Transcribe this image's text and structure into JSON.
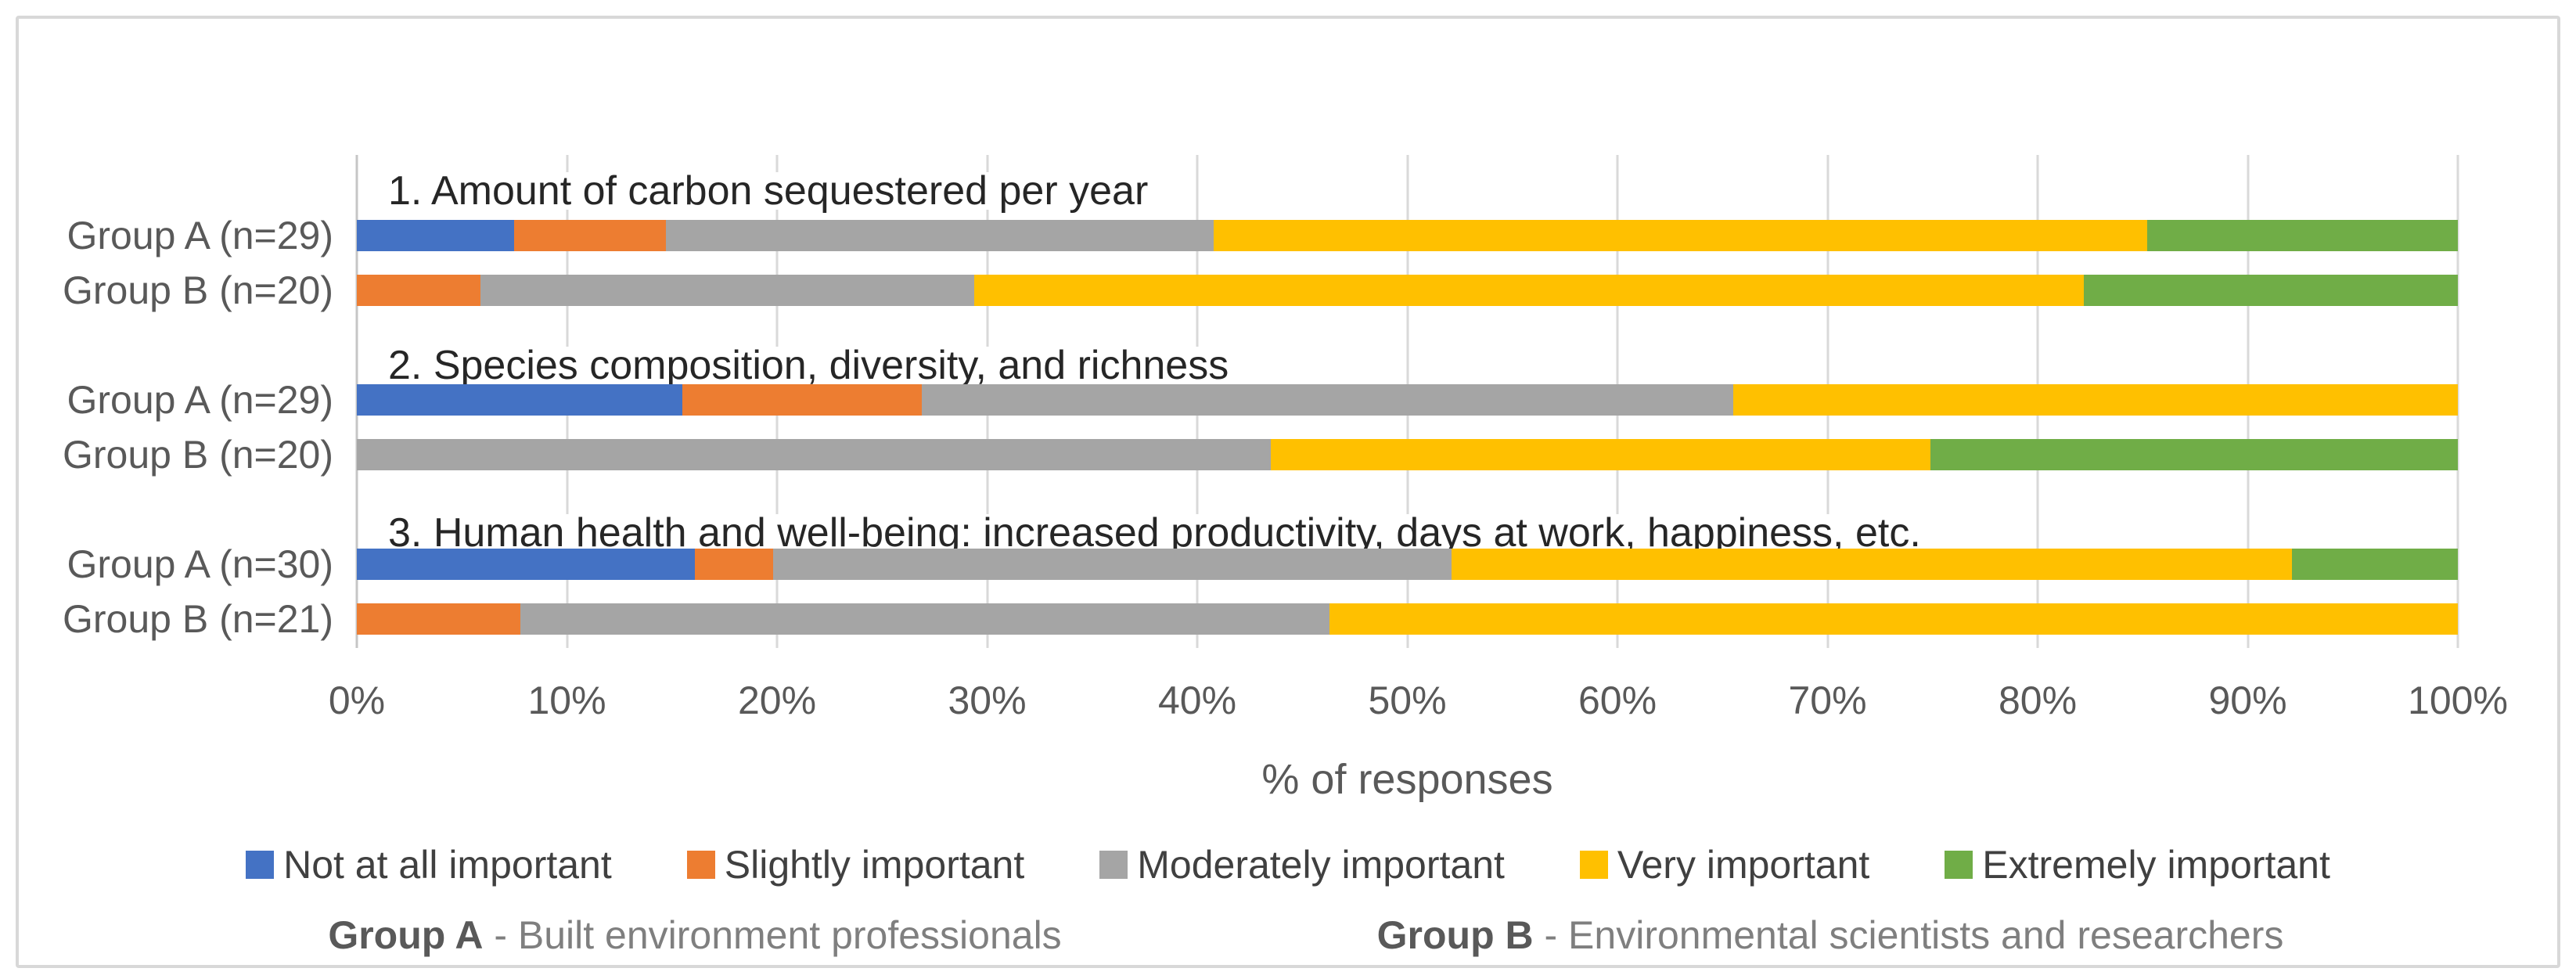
{
  "chart_data": {
    "type": "bar",
    "orientation": "horizontal",
    "stacked": true,
    "grid": true,
    "xlabel": "% of responses",
    "xlim": [
      0,
      100
    ],
    "x_ticks": [
      "0%",
      "10%",
      "20%",
      "30%",
      "40%",
      "50%",
      "60%",
      "70%",
      "80%",
      "90%",
      "100%"
    ],
    "legend_position": "bottom",
    "series": [
      {
        "name": "Not at all important",
        "color": "#4472C4"
      },
      {
        "name": "Slightly important",
        "color": "#ED7D31"
      },
      {
        "name": "Moderately important",
        "color": "#A5A5A5"
      },
      {
        "name": "Very important",
        "color": "#FFC000"
      },
      {
        "name": "Extremely important",
        "color": "#70AD47"
      }
    ],
    "groups": [
      {
        "title": "1. Amount of carbon sequestered per year",
        "rows": [
          {
            "label": "Group A (n=29)",
            "values": [
              7.5,
              7.2,
              26.1,
              44.4,
              14.8
            ]
          },
          {
            "label": "Group B (n=20)",
            "values": [
              0,
              5.9,
              23.5,
              52.8,
              17.8
            ]
          }
        ]
      },
      {
        "title": "2. Species composition, diversity,  and richness",
        "rows": [
          {
            "label": "Group A (n=29)",
            "values": [
              15.5,
              11.4,
              38.6,
              34.5,
              0
            ]
          },
          {
            "label": "Group B (n=20)",
            "values": [
              0,
              0,
              43.5,
              31.4,
              25.1
            ]
          }
        ]
      },
      {
        "title": "3. Human health and well-being: increased productivity, days at work, happiness, etc.",
        "rows": [
          {
            "label": "Group A (n=30)",
            "values": [
              16.1,
              3.7,
              32.3,
              40.0,
              7.9
            ]
          },
          {
            "label": "Group B (n=21)",
            "values": [
              0,
              7.8,
              38.5,
              53.7,
              0
            ]
          }
        ]
      }
    ],
    "gridline_color": "#D9D9D9"
  },
  "footer": {
    "notes": [
      {
        "bold": "Group A",
        "rest": " - Built environment professionals"
      },
      {
        "bold": "Group B",
        "rest": " - Environmental scientists and researchers"
      }
    ]
  }
}
